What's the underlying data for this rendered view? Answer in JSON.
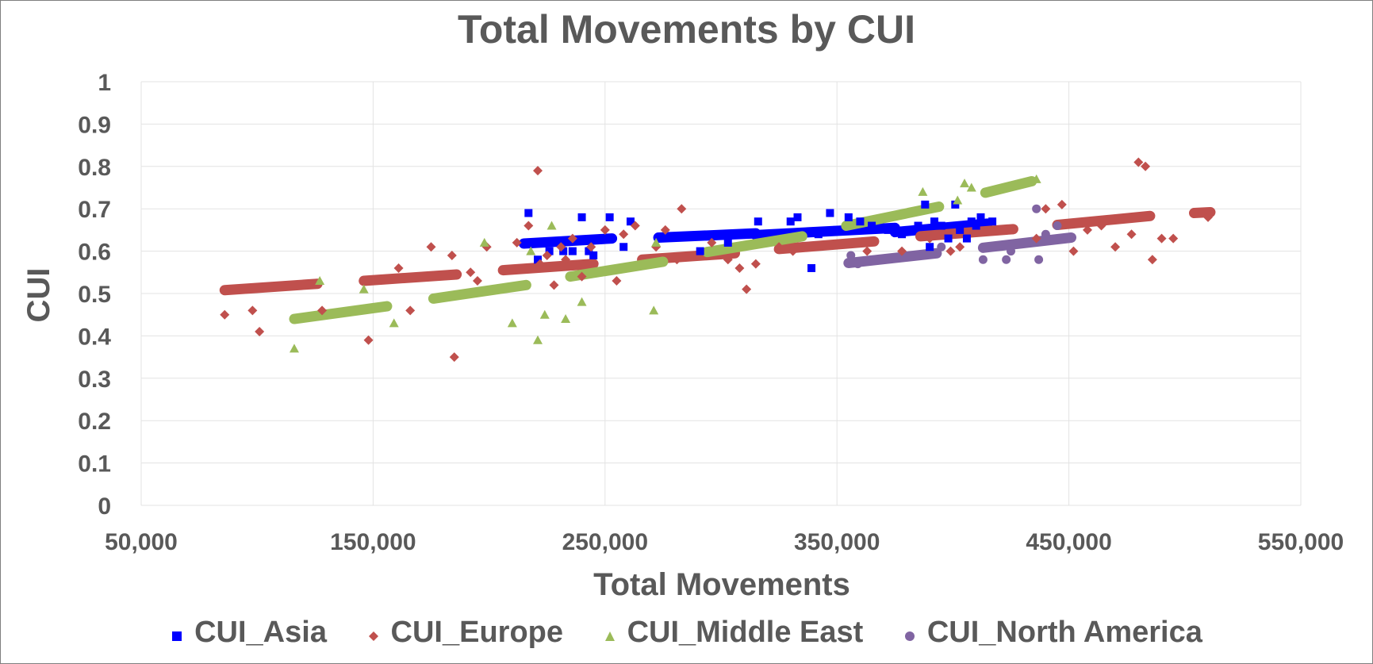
{
  "chart_data": {
    "type": "scatter",
    "title": "Total Movements by CUI",
    "xlabel": "Total Movements",
    "ylabel": "CUI",
    "xlim": [
      50000,
      550000
    ],
    "ylim": [
      0,
      1
    ],
    "x_ticks": [
      "50,000",
      "150,000",
      "250,000",
      "350,000",
      "450,000",
      "550,000"
    ],
    "x_tick_values": [
      50000,
      150000,
      250000,
      350000,
      450000,
      550000
    ],
    "y_ticks": [
      "0",
      "0.1",
      "0.2",
      "0.3",
      "0.4",
      "0.5",
      "0.6",
      "0.7",
      "0.8",
      "0.9",
      "1"
    ],
    "y_tick_values": [
      0,
      0.1,
      0.2,
      0.3,
      0.4,
      0.5,
      0.6,
      0.7,
      0.8,
      0.9,
      1
    ],
    "grid": true,
    "legend_position": "bottom",
    "series": [
      {
        "name": "CUI_Asia",
        "color": "#0000ff",
        "marker": "square",
        "points": [
          [
            217000,
            0.69
          ],
          [
            221000,
            0.58
          ],
          [
            226000,
            0.6
          ],
          [
            230000,
            0.62
          ],
          [
            232000,
            0.6
          ],
          [
            236000,
            0.6
          ],
          [
            240000,
            0.68
          ],
          [
            243000,
            0.6
          ],
          [
            245000,
            0.59
          ],
          [
            252000,
            0.68
          ],
          [
            258000,
            0.61
          ],
          [
            261000,
            0.67
          ],
          [
            291000,
            0.6
          ],
          [
            303000,
            0.62
          ],
          [
            310000,
            0.64
          ],
          [
            316000,
            0.67
          ],
          [
            330000,
            0.67
          ],
          [
            333000,
            0.68
          ],
          [
            339000,
            0.56
          ],
          [
            342000,
            0.64
          ],
          [
            347000,
            0.69
          ],
          [
            350000,
            0.65
          ],
          [
            355000,
            0.68
          ],
          [
            360000,
            0.67
          ],
          [
            365000,
            0.66
          ],
          [
            372000,
            0.65
          ],
          [
            378000,
            0.64
          ],
          [
            385000,
            0.66
          ],
          [
            388000,
            0.71
          ],
          [
            390000,
            0.61
          ],
          [
            392000,
            0.67
          ],
          [
            395000,
            0.66
          ],
          [
            398000,
            0.63
          ],
          [
            401000,
            0.71
          ],
          [
            403000,
            0.65
          ],
          [
            406000,
            0.63
          ],
          [
            408000,
            0.67
          ],
          [
            410000,
            0.66
          ],
          [
            412000,
            0.68
          ],
          [
            417000,
            0.67
          ]
        ],
        "trendlines": [
          {
            "x": [
              215000,
              253000
            ],
            "y": [
              0.618,
              0.63
            ]
          },
          {
            "x": [
              273000,
              315000
            ],
            "y": [
              0.632,
              0.642
            ]
          },
          {
            "x": [
              315000,
              375000
            ],
            "y": [
              0.638,
              0.655
            ]
          },
          {
            "x": [
              375000,
              415000
            ],
            "y": [
              0.645,
              0.665
            ]
          }
        ]
      },
      {
        "name": "CUI_Europe",
        "color": "#c0504d",
        "marker": "diamond",
        "points": [
          [
            86000,
            0.45
          ],
          [
            98000,
            0.46
          ],
          [
            101000,
            0.41
          ],
          [
            128000,
            0.46
          ],
          [
            148000,
            0.39
          ],
          [
            161000,
            0.56
          ],
          [
            166000,
            0.46
          ],
          [
            175000,
            0.61
          ],
          [
            184000,
            0.59
          ],
          [
            185000,
            0.35
          ],
          [
            192000,
            0.55
          ],
          [
            195000,
            0.53
          ],
          [
            199000,
            0.61
          ],
          [
            212000,
            0.62
          ],
          [
            217000,
            0.66
          ],
          [
            221000,
            0.79
          ],
          [
            222000,
            0.57
          ],
          [
            225000,
            0.59
          ],
          [
            228000,
            0.52
          ],
          [
            231000,
            0.61
          ],
          [
            233000,
            0.58
          ],
          [
            236000,
            0.63
          ],
          [
            240000,
            0.54
          ],
          [
            244000,
            0.61
          ],
          [
            250000,
            0.65
          ],
          [
            255000,
            0.53
          ],
          [
            258000,
            0.64
          ],
          [
            263000,
            0.66
          ],
          [
            272000,
            0.61
          ],
          [
            276000,
            0.65
          ],
          [
            281000,
            0.58
          ],
          [
            283000,
            0.7
          ],
          [
            296000,
            0.62
          ],
          [
            303000,
            0.58
          ],
          [
            308000,
            0.56
          ],
          [
            311000,
            0.51
          ],
          [
            315000,
            0.57
          ],
          [
            325000,
            0.61
          ],
          [
            331000,
            0.6
          ],
          [
            363000,
            0.6
          ],
          [
            378000,
            0.6
          ],
          [
            390000,
            0.63
          ],
          [
            399000,
            0.6
          ],
          [
            403000,
            0.61
          ],
          [
            422000,
            0.65
          ],
          [
            436000,
            0.63
          ],
          [
            440000,
            0.7
          ],
          [
            447000,
            0.71
          ],
          [
            452000,
            0.6
          ],
          [
            458000,
            0.65
          ],
          [
            464000,
            0.66
          ],
          [
            470000,
            0.61
          ],
          [
            477000,
            0.64
          ],
          [
            480000,
            0.81
          ],
          [
            483000,
            0.8
          ],
          [
            486000,
            0.58
          ],
          [
            490000,
            0.63
          ],
          [
            495000,
            0.63
          ],
          [
            507000,
            0.69
          ],
          [
            510000,
            0.68
          ]
        ],
        "trendlines": [
          {
            "x": [
              86000,
              126000
            ],
            "y": [
              0.508,
              0.523
            ]
          },
          {
            "x": [
              146000,
              186000
            ],
            "y": [
              0.53,
              0.545
            ]
          },
          {
            "x": [
              206000,
              245000
            ],
            "y": [
              0.555,
              0.57
            ]
          },
          {
            "x": [
              266000,
              306000
            ],
            "y": [
              0.58,
              0.595
            ]
          },
          {
            "x": [
              325000,
              366000
            ],
            "y": [
              0.605,
              0.623
            ]
          },
          {
            "x": [
              386000,
              426000
            ],
            "y": [
              0.635,
              0.652
            ]
          },
          {
            "x": [
              445000,
              485000
            ],
            "y": [
              0.662,
              0.683
            ]
          },
          {
            "x": [
              504000,
              511000
            ],
            "y": [
              0.69,
              0.692
            ]
          }
        ]
      },
      {
        "name": "CUI_Middle East",
        "color": "#9bbb59",
        "marker": "triangle",
        "points": [
          [
            116000,
            0.37
          ],
          [
            127000,
            0.53
          ],
          [
            146000,
            0.51
          ],
          [
            159000,
            0.43
          ],
          [
            198000,
            0.62
          ],
          [
            210000,
            0.43
          ],
          [
            218000,
            0.6
          ],
          [
            221000,
            0.39
          ],
          [
            224000,
            0.45
          ],
          [
            227000,
            0.66
          ],
          [
            233000,
            0.44
          ],
          [
            240000,
            0.48
          ],
          [
            271000,
            0.46
          ],
          [
            272000,
            0.62
          ],
          [
            387000,
            0.74
          ],
          [
            402000,
            0.72
          ],
          [
            405000,
            0.76
          ],
          [
            408000,
            0.75
          ],
          [
            436000,
            0.77
          ]
        ],
        "trendlines": [
          {
            "x": [
              116000,
              156000
            ],
            "y": [
              0.44,
              0.47
            ]
          },
          {
            "x": [
              176000,
              216000
            ],
            "y": [
              0.488,
              0.52
            ]
          },
          {
            "x": [
              235000,
              275000
            ],
            "y": [
              0.54,
              0.575
            ]
          },
          {
            "x": [
              294000,
              335000
            ],
            "y": [
              0.598,
              0.635
            ]
          },
          {
            "x": [
              354000,
              394000
            ],
            "y": [
              0.66,
              0.705
            ]
          },
          {
            "x": [
              414000,
              434000
            ],
            "y": [
              0.738,
              0.765
            ]
          }
        ]
      },
      {
        "name": "CUI_North America",
        "color": "#8064a2",
        "marker": "circle",
        "points": [
          [
            356000,
            0.59
          ],
          [
            359000,
            0.57
          ],
          [
            382000,
            0.59
          ],
          [
            395000,
            0.61
          ],
          [
            413000,
            0.58
          ],
          [
            423000,
            0.58
          ],
          [
            425000,
            0.6
          ],
          [
            436000,
            0.7
          ],
          [
            437000,
            0.58
          ],
          [
            440000,
            0.64
          ],
          [
            445000,
            0.66
          ]
        ],
        "trendlines": [
          {
            "x": [
              355000,
              393000
            ],
            "y": [
              0.572,
              0.595
            ]
          },
          {
            "x": [
              413000,
              451000
            ],
            "y": [
              0.608,
              0.632
            ]
          }
        ]
      }
    ]
  }
}
